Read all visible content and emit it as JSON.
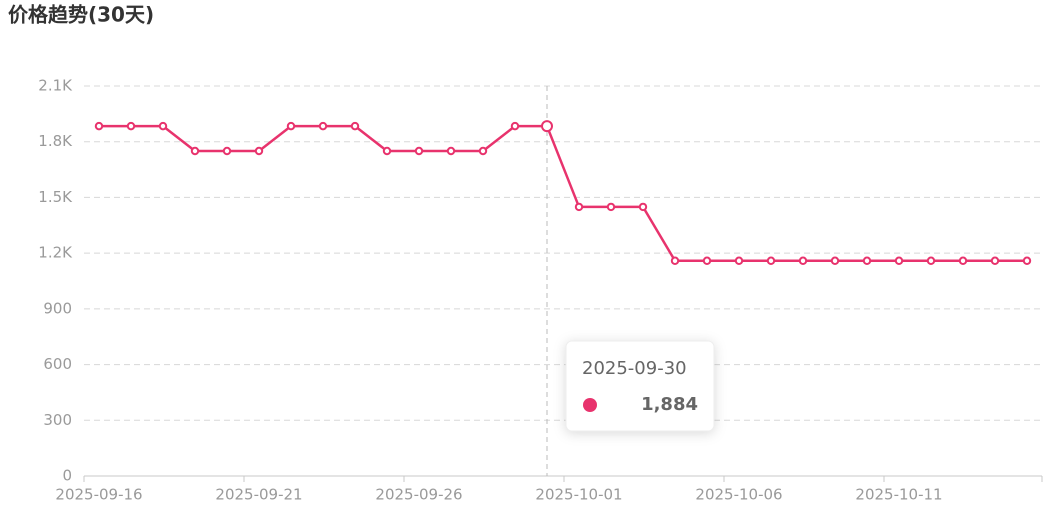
{
  "chart_data": {
    "type": "line",
    "title": "价格趋势(30天)",
    "categories": [
      "2025-09-16",
      "2025-09-17",
      "2025-09-18",
      "2025-09-19",
      "2025-09-20",
      "2025-09-21",
      "2025-09-22",
      "2025-09-23",
      "2025-09-24",
      "2025-09-25",
      "2025-09-26",
      "2025-09-27",
      "2025-09-28",
      "2025-09-29",
      "2025-09-30",
      "2025-10-01",
      "2025-10-02",
      "2025-10-03",
      "2025-10-04",
      "2025-10-05",
      "2025-10-06",
      "2025-10-07",
      "2025-10-08",
      "2025-10-09",
      "2025-10-10",
      "2025-10-11",
      "2025-10-12",
      "2025-10-13",
      "2025-10-14",
      "2025-10-15"
    ],
    "series": [
      {
        "name": "价格",
        "color": "#e8336d",
        "values": [
          1884,
          1884,
          1884,
          1750,
          1750,
          1750,
          1884,
          1884,
          1884,
          1750,
          1750,
          1750,
          1750,
          1884,
          1884,
          1449,
          1449,
          1449,
          1159,
          1159,
          1159,
          1159,
          1159,
          1159,
          1159,
          1159,
          1159,
          1159,
          1159,
          1159
        ]
      }
    ],
    "ylim": [
      0,
      2100
    ],
    "yticks": [
      0,
      300,
      600,
      900,
      {
        "value": 1200,
        "label": "1.2K"
      },
      {
        "value": 1500,
        "label": "1.5K"
      },
      {
        "value": 1800,
        "label": "1.8K"
      },
      {
        "value": 2100,
        "label": "2.1K"
      }
    ],
    "grid": true,
    "tooltip": {
      "x": "2025-09-30",
      "value": 1884,
      "value_label": "1,884"
    }
  }
}
